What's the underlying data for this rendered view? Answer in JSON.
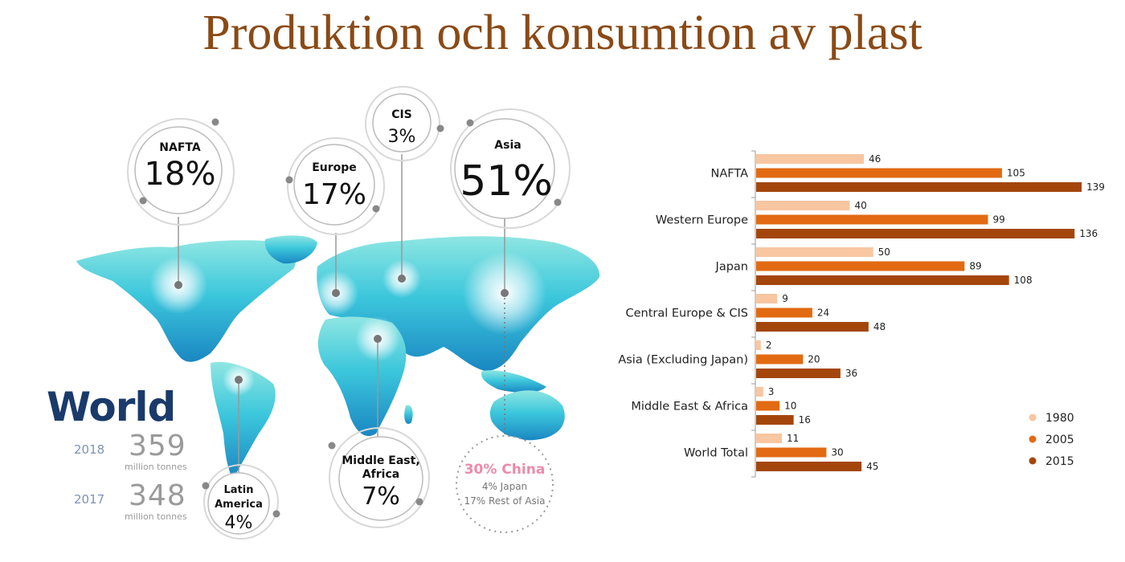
{
  "title": "Produktion och konsumtion av plast",
  "map": {
    "bubbles": [
      {
        "id": "nafta",
        "label": "NAFTA",
        "value": "18%"
      },
      {
        "id": "europe",
        "label": "Europe",
        "value": "17%"
      },
      {
        "id": "cis",
        "label": "CIS",
        "value": "3%"
      },
      {
        "id": "asia",
        "label": "Asia",
        "value": "51%"
      },
      {
        "id": "latam",
        "label_line1": "Latin",
        "label_line2": "America",
        "value": "4%"
      },
      {
        "id": "mea",
        "label_line1": "Middle East,",
        "label_line2": "Africa",
        "value": "7%"
      }
    ],
    "asia_detail": {
      "china": "30% China",
      "japan": "4% Japan",
      "rest": "17% Rest of Asia"
    },
    "world": {
      "title": "World",
      "stats": [
        {
          "year": "2018",
          "value": "359",
          "unit": "million tonnes"
        },
        {
          "year": "2017",
          "value": "348",
          "unit": "million tonnes"
        }
      ]
    }
  },
  "colors": {
    "s1980": "#f8c6a0",
    "s2005": "#e26a12",
    "s2015": "#a4460c",
    "title": "#8a4a16",
    "map": "#33c3d8"
  },
  "chart_data": {
    "type": "bar",
    "orientation": "horizontal",
    "categories": [
      "NAFTA",
      "Western Europe",
      "Japan",
      "Central Europe & CIS",
      "Asia (Excluding Japan)",
      "Middle East & Africa",
      "World Total"
    ],
    "series": [
      {
        "name": "1980",
        "values": [
          46,
          40,
          50,
          9,
          2,
          3,
          11
        ]
      },
      {
        "name": "2005",
        "values": [
          105,
          99,
          89,
          24,
          20,
          10,
          30
        ]
      },
      {
        "name": "2015",
        "values": [
          139,
          136,
          108,
          48,
          36,
          16,
          45
        ]
      }
    ],
    "legend_position": "bottom-right",
    "grid": false
  }
}
